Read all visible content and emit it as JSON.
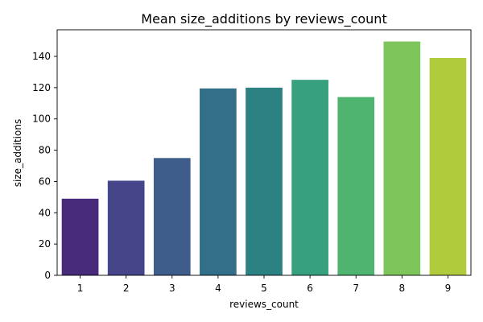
{
  "chart_data": {
    "type": "bar",
    "title": "Mean size_additions by reviews_count",
    "xlabel": "reviews_count",
    "ylabel": "size_additions",
    "categories": [
      "1",
      "2",
      "3",
      "4",
      "5",
      "6",
      "7",
      "8",
      "9"
    ],
    "values": [
      49,
      60.5,
      75,
      119.5,
      120,
      125,
      114,
      149.5,
      139
    ],
    "ylim": [
      0,
      157
    ],
    "yticks": [
      0,
      20,
      40,
      60,
      80,
      100,
      120,
      140
    ],
    "colors": [
      "#472a7a",
      "#46458a",
      "#3e5d8a",
      "#346f8a",
      "#2c8283",
      "#36a07f",
      "#50b471",
      "#7ec55c",
      "#b0cb3b"
    ],
    "grid": false,
    "legend": "none"
  }
}
